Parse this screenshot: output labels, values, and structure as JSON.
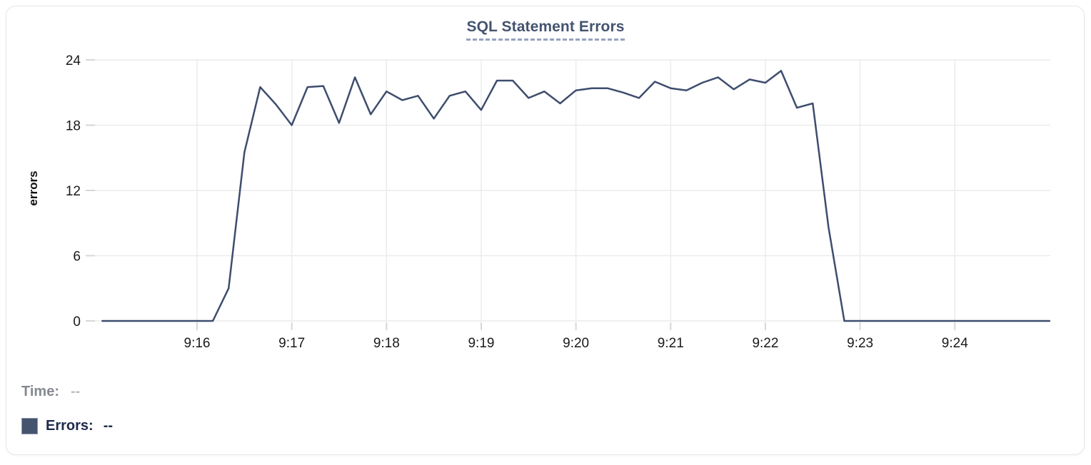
{
  "chart": {
    "title": "SQL Statement Errors",
    "y_axis_title": "errors"
  },
  "tooltip": {
    "time_label": "Time:",
    "time_value": "--",
    "errors_label": "Errors:",
    "errors_value": "--"
  },
  "colors": {
    "line": "#3E4D6E",
    "title": "#44546F",
    "title_underline": "#96A2BE",
    "legend_swatch": "#44536E",
    "grid": "#ECECEC",
    "tick": "#D7D7D7",
    "axis_text": "#1A1A1A",
    "card_border": "#E6E7E9"
  },
  "chart_data": {
    "type": "line",
    "title": "SQL Statement Errors",
    "xlabel": "",
    "ylabel": "errors",
    "ylim": [
      0,
      24
    ],
    "yticks": [
      0,
      6,
      12,
      18,
      24
    ],
    "xticks": [
      "9:16",
      "9:17",
      "9:18",
      "9:19",
      "9:20",
      "9:21",
      "9:22",
      "9:23",
      "9:24"
    ],
    "grid": true,
    "legend_position": "bottom-left",
    "x": [
      "9:15:00",
      "9:15:10",
      "9:15:20",
      "9:15:30",
      "9:15:40",
      "9:15:50",
      "9:16:00",
      "9:16:10",
      "9:16:20",
      "9:16:30",
      "9:16:40",
      "9:16:50",
      "9:17:00",
      "9:17:10",
      "9:17:20",
      "9:17:30",
      "9:17:40",
      "9:17:50",
      "9:18:00",
      "9:18:10",
      "9:18:20",
      "9:18:30",
      "9:18:40",
      "9:18:50",
      "9:19:00",
      "9:19:10",
      "9:19:20",
      "9:19:30",
      "9:19:40",
      "9:19:50",
      "9:20:00",
      "9:20:10",
      "9:20:20",
      "9:20:30",
      "9:20:40",
      "9:20:50",
      "9:21:00",
      "9:21:10",
      "9:21:20",
      "9:21:30",
      "9:21:40",
      "9:21:50",
      "9:22:00",
      "9:22:10",
      "9:22:20",
      "9:22:30",
      "9:22:40",
      "9:22:50",
      "9:23:00",
      "9:23:10",
      "9:23:20",
      "9:23:30",
      "9:23:40",
      "9:23:50",
      "9:24:00",
      "9:24:10",
      "9:24:20",
      "9:24:30",
      "9:24:40",
      "9:24:50",
      "9:25:00"
    ],
    "series": [
      {
        "name": "Errors",
        "color": "#3E4D6E",
        "values": [
          0,
          0,
          0,
          0,
          0,
          0,
          0,
          0,
          3,
          15.5,
          21.5,
          19.9,
          18,
          21.5,
          21.6,
          18.2,
          22.4,
          19,
          21.1,
          20.3,
          20.7,
          18.6,
          20.7,
          21.1,
          19.4,
          22.1,
          22.1,
          20.5,
          21.1,
          20,
          21.2,
          21.4,
          21.4,
          21,
          20.5,
          22,
          21.4,
          21.2,
          21.9,
          22.4,
          21.3,
          22.2,
          21.9,
          23,
          19.6,
          20,
          8.6,
          0,
          0,
          0,
          0,
          0,
          0,
          0,
          0,
          0,
          0,
          0,
          0,
          0,
          0
        ]
      }
    ]
  }
}
